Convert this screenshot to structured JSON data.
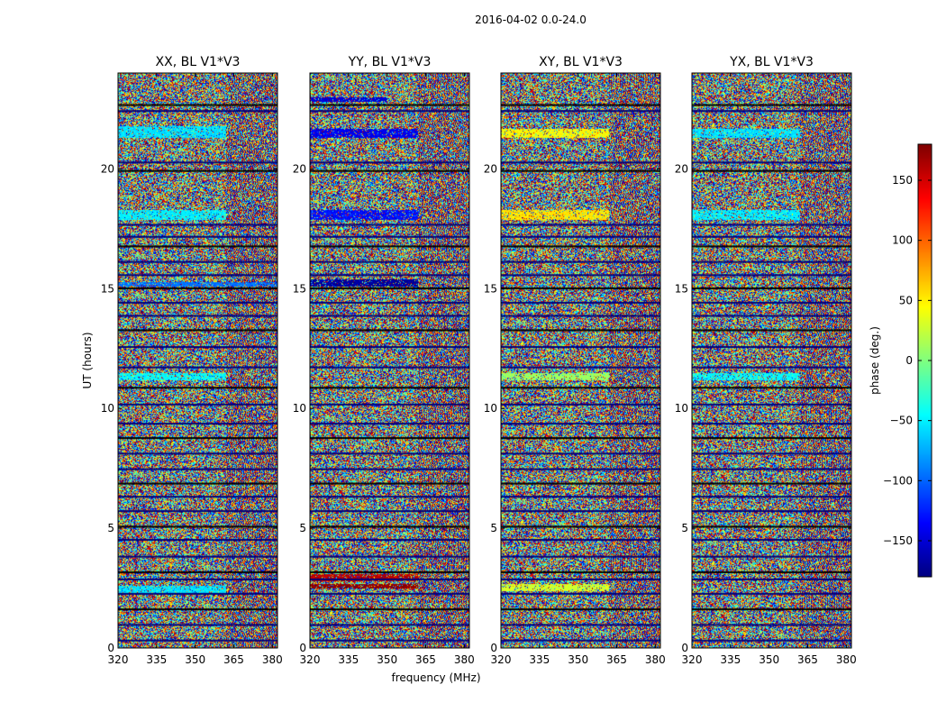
{
  "chart_data": {
    "type": "heatmap",
    "suptitle": "2016-04-02 0.0-24.0",
    "xlabel": "frequency (MHz)",
    "ylabel": "UT (hours)",
    "xlim": [
      320,
      382
    ],
    "ylim": [
      0,
      24
    ],
    "xticks": [
      "320",
      "335",
      "350",
      "365",
      "380"
    ],
    "xtick_values": [
      320,
      335,
      350,
      365,
      380
    ],
    "yticks": [
      "0",
      "5",
      "10",
      "15",
      "20"
    ],
    "ytick_values": [
      0,
      5,
      10,
      15,
      20
    ],
    "panels": [
      {
        "title": "XX, BL V1*V3",
        "polarization": "XX",
        "bands": [
          {
            "t0": 21.3,
            "t1": 21.8,
            "f_end": 362,
            "value": -55
          },
          {
            "t0": 17.9,
            "t1": 18.3,
            "f_end": 362,
            "value": -50
          },
          {
            "t0": 11.2,
            "t1": 11.5,
            "f_end": 362,
            "value": -45
          },
          {
            "t0": 2.3,
            "t1": 2.6,
            "f_end": 362,
            "value": -55
          },
          {
            "t0": 15.1,
            "t1": 15.3,
            "f_end": 382,
            "value": -95
          }
        ]
      },
      {
        "title": "YY, BL V1*V3",
        "polarization": "YY",
        "bands": [
          {
            "t0": 21.3,
            "t1": 21.7,
            "f_end": 362,
            "value": -140
          },
          {
            "t0": 17.9,
            "t1": 18.3,
            "f_end": 362,
            "value": -130
          },
          {
            "t0": 15.1,
            "t1": 15.4,
            "f_end": 362,
            "value": -170
          },
          {
            "t0": 22.8,
            "t1": 23.0,
            "f_end": 350,
            "value": -150
          },
          {
            "t0": 2.8,
            "t1": 3.1,
            "f_end": 362,
            "value": 160
          },
          {
            "t0": 2.5,
            "t1": 2.7,
            "f_end": 362,
            "value": 175
          }
        ]
      },
      {
        "title": "XY, BL V1*V3",
        "polarization": "XY",
        "bands": [
          {
            "t0": 21.3,
            "t1": 21.7,
            "f_end": 362,
            "value": 45
          },
          {
            "t0": 17.9,
            "t1": 18.3,
            "f_end": 362,
            "value": 55
          },
          {
            "t0": 2.4,
            "t1": 2.7,
            "f_end": 362,
            "value": 30
          },
          {
            "t0": 11.2,
            "t1": 11.5,
            "f_end": 362,
            "value": 10
          }
        ]
      },
      {
        "title": "YX, BL V1*V3",
        "polarization": "YX",
        "bands": [
          {
            "t0": 21.3,
            "t1": 21.7,
            "f_end": 362,
            "value": -55
          },
          {
            "t0": 17.9,
            "t1": 18.3,
            "f_end": 362,
            "value": -50
          },
          {
            "t0": 11.2,
            "t1": 11.5,
            "f_end": 362,
            "value": -45
          }
        ]
      }
    ],
    "gaps_ut": [
      22.7,
      22.45,
      20.3,
      19.95,
      17.7,
      17.2,
      16.8,
      16.15,
      15.6,
      15.05,
      14.45,
      13.9,
      13.3,
      12.6,
      11.75,
      10.9,
      10.2,
      9.4,
      8.8,
      8.15,
      7.5,
      6.9,
      6.35,
      5.75,
      5.1,
      4.55,
      3.85,
      3.2,
      2.9,
      2.3,
      1.65,
      1.0,
      0.35
    ],
    "colorbar": {
      "label": "phase (deg.)",
      "range": [
        -180,
        180
      ],
      "ticks": [
        "150",
        "100",
        "50",
        "0",
        "−50",
        "−100",
        "−150"
      ],
      "tick_values": [
        150,
        100,
        50,
        0,
        -50,
        -100,
        -150
      ],
      "colormap": "jet",
      "colors": [
        "#000080",
        "#0000ff",
        "#0080ff",
        "#00ffff",
        "#80ff80",
        "#ffff00",
        "#ff8000",
        "#ff0000",
        "#800000"
      ]
    }
  }
}
